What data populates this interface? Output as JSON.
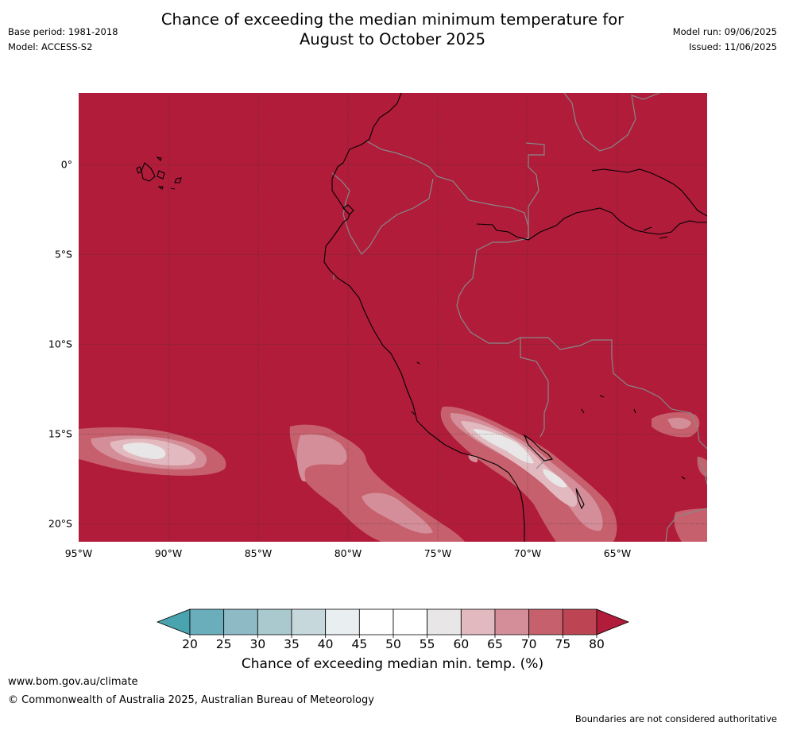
{
  "title_line1": "Chance of exceeding the median minimum temperature for",
  "title_line2": "August to October 2025",
  "meta": {
    "base_period": "Base period: 1981-2018",
    "model": "Model: ACCESS-S2",
    "model_run": "Model run: 09/06/2025",
    "issued": "Issued: 11/06/2025"
  },
  "map": {
    "lon_range": [
      -95,
      -60
    ],
    "lat_range": [
      -21,
      4
    ],
    "lat_ticks": [
      {
        "value": 0,
        "label": "0°"
      },
      {
        "value": -5,
        "label": "5°S"
      },
      {
        "value": -10,
        "label": "10°S"
      },
      {
        "value": -15,
        "label": "15°S"
      },
      {
        "value": -20,
        "label": "20°S"
      }
    ],
    "lon_ticks": [
      {
        "value": -95,
        "label": "95°W"
      },
      {
        "value": -90,
        "label": "90°W"
      },
      {
        "value": -85,
        "label": "85°W"
      },
      {
        "value": -80,
        "label": "80°W"
      },
      {
        "value": -75,
        "label": "75°W"
      },
      {
        "value": -70,
        "label": "70°W"
      },
      {
        "value": -65,
        "label": "65°W"
      }
    ],
    "dominant_category": "80+"
  },
  "colorbar": {
    "ticks": [
      "20",
      "25",
      "30",
      "35",
      "40",
      "45",
      "50",
      "55",
      "60",
      "65",
      "70",
      "75",
      "80"
    ],
    "colors": [
      "#6aaebb",
      "#8dbac5",
      "#aac9cf",
      "#c7d8dc",
      "#e9eff1",
      "#ffffff",
      "#ffffff",
      "#e8e6e6",
      "#e2b9bf",
      "#d48e99",
      "#c7606d",
      "#bd4553"
    ],
    "under_color": "#4aa4b0",
    "over_color": "#b01c3a",
    "label": "Chance of exceeding median min. temp. (%)"
  },
  "footer": {
    "website": "www.bom.gov.au/climate",
    "copyright": "© Commonwealth of Australia 2025, Australian Bureau of Meteorology",
    "disclaimer": "Boundaries are not considered authoritative"
  }
}
